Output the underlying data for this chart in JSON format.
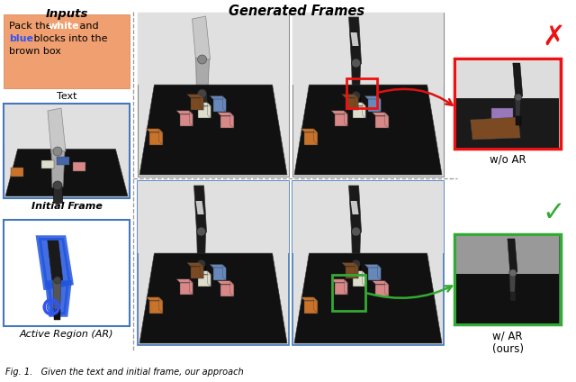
{
  "inputs_title": "Inputs",
  "generated_frames_title": "Generated Frames",
  "text_box_color": "#F4A460",
  "text_label": "Text",
  "initial_frame_label": "Initial Frame",
  "active_region_label": "Active Region (AR)",
  "wo_ar_label": "w/o AR",
  "w_ar_label": "w/ AR\n(ours)",
  "bg_color": "#FFFFFF",
  "dashed_line_color": "#999999",
  "blue_outline_color": "#4477BB",
  "cross_color": "#EE1111",
  "check_color": "#33AA33",
  "arrow_red_color": "#DD1111",
  "arrow_green_color": "#33AA33",
  "block_colors": {
    "orange": "#C8722A",
    "pink": "#D98888",
    "white_block": "#DDDDCC",
    "blue_block": "#6688BB",
    "purple": "#9977BB",
    "brown": "#7B4A22",
    "blue_small": "#4466AA"
  },
  "frame_bg_light": "#E0E0E0",
  "frame_bg_dark": "#BBBBBB",
  "table_color": "#111111",
  "robot_dark": "#1A1A1A",
  "robot_mid": "#555555",
  "robot_light": "#AAAAAA",
  "robot_white": "#CCCCCC",
  "thumb1_bg_top": "#CCCCCC",
  "thumb1_bg_bot": "#1A1A1A",
  "thumb2_bg_top": "#888888",
  "thumb2_bg_bot": "#1A1A1A",
  "caption": "Fig. 1.   Given the text and initial frame, our approach"
}
